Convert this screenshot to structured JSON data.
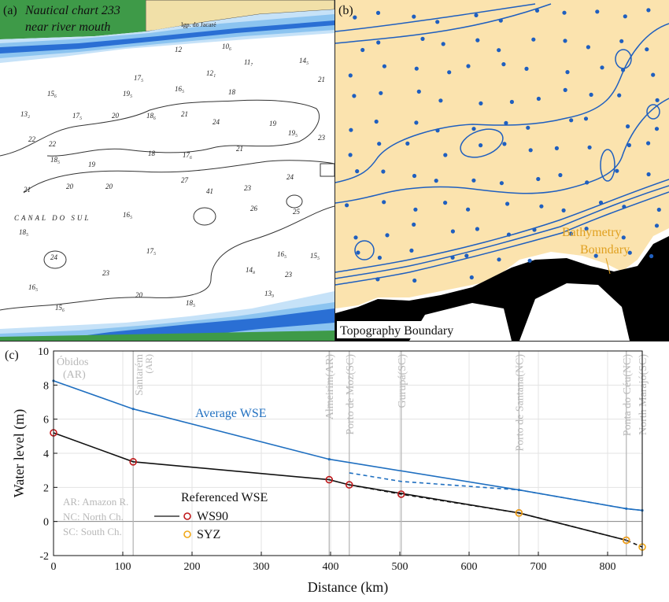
{
  "panel_a": {
    "label": "(a)",
    "title_line1": "Nautical chart 233",
    "title_line2": "near river mouth",
    "channel_label": "CANAL DO SUL",
    "place_label": "Igp. do Jacaré",
    "soundings": [
      "12",
      "10₆",
      "11₇",
      "14₅",
      "17₅",
      "12₁",
      "16₅",
      "19₅",
      "15₆",
      "18",
      "21",
      "17₅",
      "20",
      "24",
      "22",
      "18₆",
      "21",
      "19",
      "22",
      "19₅",
      "18₅",
      "19",
      "18",
      "17₆",
      "21",
      "23",
      "21",
      "20",
      "20",
      "23",
      "26",
      "24",
      "25",
      "41",
      "27",
      "16₅",
      "17₅",
      "16₅",
      "15₅",
      "14₈",
      "23",
      "18₅",
      "24",
      "23",
      "20",
      "18₅",
      "15₆",
      "16₅",
      "13₉",
      "13₂"
    ],
    "colors": {
      "deep_blue": "#2a6fd4",
      "mid_blue": "#8cc4f0",
      "light_blue": "#c6e2f8",
      "land_green": "#3e9a48",
      "sand": "#f1e0a8"
    }
  },
  "panel_b": {
    "label": "(b)",
    "bathymetry_label_1": "Bathymetry",
    "bathymetry_label_2": "Boundary",
    "topography_label": "Topography Boundary",
    "colors": {
      "sand": "#fbe3ae",
      "contour": "#1f5fbf",
      "text_orange": "#e0a020"
    }
  },
  "panel_c": {
    "label": "(c)",
    "series_label": "Average WSE",
    "legend_title": "Referenced WSE",
    "legend_ws90": "WS90",
    "legend_syz": "SYZ",
    "abbrev_1": "AR: Amazon R.",
    "abbrev_2": "NC: North Ch.",
    "abbrev_3": "SC: South Ch.",
    "colors": {
      "avg": "#1f6fc0",
      "ref": "#111111",
      "ws90": "#c0181a",
      "syz": "#f0a818",
      "station": "#b8b8b8",
      "grid": "#e3e3e3"
    }
  },
  "chart_data": {
    "type": "line",
    "xlabel": "Distance (km)",
    "ylabel": "Water level (m)",
    "xlim": [
      0,
      850
    ],
    "ylim": [
      -2,
      10
    ],
    "x_ticks": [
      0,
      100,
      200,
      300,
      400,
      500,
      600,
      700,
      800
    ],
    "y_ticks": [
      -2,
      0,
      2,
      4,
      6,
      8,
      10
    ],
    "grid": true,
    "stations": [
      {
        "name": "Óbidos",
        "code": "(AR)",
        "x": 0
      },
      {
        "name": "Santarém",
        "code": "(AR)",
        "x": 115
      },
      {
        "name": "Almeirim",
        "code": "(AR)",
        "x": 398
      },
      {
        "name": "Porto de Moz",
        "code": "(SC)",
        "x": 427
      },
      {
        "name": "Gurupá",
        "code": "(SC)",
        "x": 502
      },
      {
        "name": "Porto de Santana",
        "code": "(NC)",
        "x": 672
      },
      {
        "name": "Ponta do Céu",
        "code": "(NC)",
        "x": 827
      },
      {
        "name": "North Marajó",
        "code": "(SC)",
        "x": 850
      }
    ],
    "series": [
      {
        "name": "Average WSE",
        "style": "solid",
        "x": [
          0,
          115,
          398,
          672,
          827,
          850
        ],
        "y": [
          8.25,
          6.6,
          3.65,
          1.85,
          0.75,
          0.65
        ]
      },
      {
        "style": "dashed",
        "x": [
          427,
          502,
          672,
          827,
          850
        ],
        "y": [
          2.85,
          2.35,
          1.85,
          0.75,
          0.65
        ]
      },
      {
        "name": "WS90",
        "style": "solid",
        "x": [
          0,
          115,
          398,
          427,
          672,
          827
        ],
        "y": [
          5.2,
          3.5,
          2.45,
          2.15,
          0.5,
          -1.1
        ]
      },
      {
        "style": "dashed",
        "x": [
          427,
          502,
          672,
          827,
          850
        ],
        "y": [
          2.15,
          1.6,
          0.5,
          -1.1,
          -1.5
        ]
      },
      {
        "name": "SYZ",
        "style": "markers",
        "x": [
          672,
          827,
          850
        ],
        "y": [
          0.5,
          -1.1,
          -1.5
        ]
      }
    ]
  }
}
